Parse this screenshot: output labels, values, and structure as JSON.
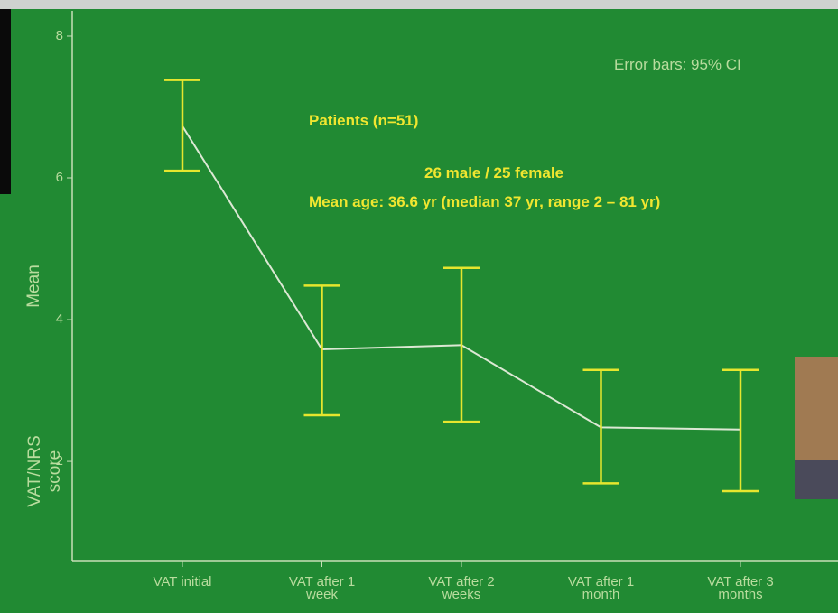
{
  "chart_data": {
    "type": "line",
    "ylabel": "Mean",
    "ylabel2": "VAT/NRS score",
    "annotations": [
      "Error bars: 95% CI",
      "Patients  (n=51)",
      "26 male / 25 female",
      "Mean age: 36.6 yr (median 37 yr, range 2 – 81 yr)"
    ],
    "categories": [
      "VAT initial",
      "VAT after 1 week",
      "VAT after 2 weeks",
      "VAT after 1 month",
      "VAT after 3 months"
    ],
    "values": [
      6.73,
      3.58,
      3.64,
      2.48,
      2.45
    ],
    "ci_lower": [
      6.1,
      2.65,
      2.56,
      1.69,
      1.58
    ],
    "ci_upper": [
      7.38,
      4.48,
      4.73,
      3.29,
      3.29
    ],
    "color": "#dce8d4",
    "error_color": "#e6e62e",
    "ylim": [
      0.6,
      8.35
    ],
    "yticks": [
      2,
      4,
      6,
      8
    ]
  }
}
